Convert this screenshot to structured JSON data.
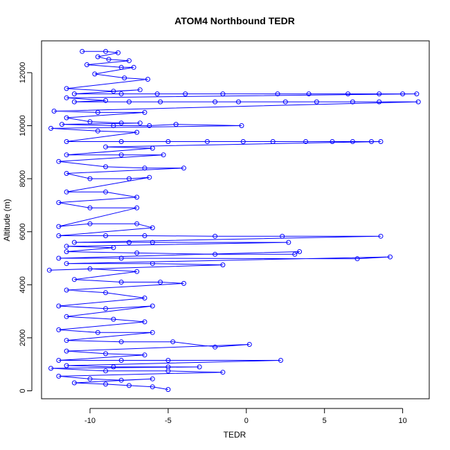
{
  "chart_data": {
    "type": "scatter",
    "title": "ATOM4 Northbound TEDR",
    "xlabel": "TEDR",
    "ylabel": "Altitude (m)",
    "xlim": [
      -13.1,
      11.7
    ],
    "ylim": [
      -300,
      13200
    ],
    "x_ticks": [
      -10,
      -5,
      0,
      5,
      10
    ],
    "x_tick_labels": [
      "-10",
      "-5",
      "0",
      "5",
      "10"
    ],
    "y_ticks": [
      0,
      2000,
      4000,
      6000,
      8000,
      10000,
      12000
    ],
    "y_tick_labels": [
      "0",
      "2000",
      "4000",
      "6000",
      "8000",
      "10000",
      "12000"
    ],
    "grid": false,
    "legend": "none",
    "point_style": "open-circle",
    "line_connecting_points": true,
    "series_color": "#0000ff",
    "points": [
      [
        -10.5,
        12800
      ],
      [
        -9.0,
        12800
      ],
      [
        -8.2,
        12750
      ],
      [
        -9.5,
        12600
      ],
      [
        -8.8,
        12500
      ],
      [
        -7.5,
        12450
      ],
      [
        -10.2,
        12300
      ],
      [
        -8.0,
        12200
      ],
      [
        -7.2,
        12200
      ],
      [
        -9.7,
        11950
      ],
      [
        -7.8,
        11800
      ],
      [
        -6.3,
        11750
      ],
      [
        -11.5,
        11400
      ],
      [
        -8.5,
        11300
      ],
      [
        -6.8,
        11350
      ],
      [
        -11.0,
        11200
      ],
      [
        -8.0,
        11200
      ],
      [
        -5.7,
        11200
      ],
      [
        -3.9,
        11200
      ],
      [
        -1.5,
        11200
      ],
      [
        2.0,
        11200
      ],
      [
        4.0,
        11200
      ],
      [
        6.5,
        11200
      ],
      [
        8.5,
        11200
      ],
      [
        10.0,
        11200
      ],
      [
        10.9,
        11200
      ],
      [
        -11.5,
        11050
      ],
      [
        -9.0,
        10950
      ],
      [
        -11.0,
        10900
      ],
      [
        -7.5,
        10900
      ],
      [
        -5.5,
        10900
      ],
      [
        -2.0,
        10900
      ],
      [
        -0.5,
        10900
      ],
      [
        2.5,
        10900
      ],
      [
        4.5,
        10900
      ],
      [
        6.8,
        10900
      ],
      [
        8.5,
        10900
      ],
      [
        11.0,
        10900
      ],
      [
        -12.3,
        10550
      ],
      [
        -9.5,
        10500
      ],
      [
        -6.5,
        10500
      ],
      [
        -11.5,
        10300
      ],
      [
        -10.0,
        10150
      ],
      [
        -8.0,
        10100
      ],
      [
        -6.8,
        10100
      ],
      [
        -11.8,
        10050
      ],
      [
        -8.5,
        10000
      ],
      [
        -6.2,
        10000
      ],
      [
        -4.5,
        10050
      ],
      [
        -0.3,
        10000
      ],
      [
        -12.5,
        9900
      ],
      [
        -9.5,
        9800
      ],
      [
        -7.0,
        9750
      ],
      [
        -11.5,
        9400
      ],
      [
        -8.0,
        9400
      ],
      [
        -5.0,
        9400
      ],
      [
        -2.5,
        9400
      ],
      [
        -0.2,
        9400
      ],
      [
        1.7,
        9400
      ],
      [
        3.8,
        9400
      ],
      [
        5.5,
        9400
      ],
      [
        6.8,
        9400
      ],
      [
        8.0,
        9400
      ],
      [
        8.6,
        9400
      ],
      [
        -9.0,
        9200
      ],
      [
        -6.0,
        9150
      ],
      [
        -11.5,
        8900
      ],
      [
        -8.0,
        8900
      ],
      [
        -5.3,
        8900
      ],
      [
        -12.0,
        8650
      ],
      [
        -9.0,
        8450
      ],
      [
        -6.5,
        8400
      ],
      [
        -4.0,
        8400
      ],
      [
        -11.5,
        8200
      ],
      [
        -10.0,
        8000
      ],
      [
        -7.5,
        8000
      ],
      [
        -6.2,
        8050
      ],
      [
        -11.5,
        7500
      ],
      [
        -9.0,
        7500
      ],
      [
        -7.0,
        7300
      ],
      [
        -12.0,
        7100
      ],
      [
        -10.0,
        6900
      ],
      [
        -7.0,
        6900
      ],
      [
        -12.0,
        6200
      ],
      [
        -10.0,
        6300
      ],
      [
        -7.0,
        6300
      ],
      [
        -6.0,
        6150
      ],
      [
        -12.0,
        5850
      ],
      [
        -9.0,
        5850
      ],
      [
        -6.5,
        5850
      ],
      [
        -2.0,
        5830
      ],
      [
        2.3,
        5830
      ],
      [
        8.6,
        5830
      ],
      [
        -11.0,
        5600
      ],
      [
        -7.5,
        5600
      ],
      [
        -6.0,
        5600
      ],
      [
        2.7,
        5600
      ],
      [
        -11.5,
        5450
      ],
      [
        -8.5,
        5400
      ],
      [
        -11.5,
        5250
      ],
      [
        -7.0,
        5200
      ],
      [
        -2.0,
        5150
      ],
      [
        3.1,
        5150
      ],
      [
        3.4,
        5250
      ],
      [
        -12.0,
        5000
      ],
      [
        -8.0,
        5000
      ],
      [
        7.1,
        4980
      ],
      [
        9.2,
        5050
      ],
      [
        -11.5,
        4800
      ],
      [
        -6.0,
        4800
      ],
      [
        -1.5,
        4750
      ],
      [
        -12.6,
        4550
      ],
      [
        -10.0,
        4600
      ],
      [
        -7.0,
        4500
      ],
      [
        -11.0,
        4200
      ],
      [
        -8.0,
        4100
      ],
      [
        -5.5,
        4100
      ],
      [
        -4.0,
        4050
      ],
      [
        -11.5,
        3800
      ],
      [
        -9.0,
        3700
      ],
      [
        -6.5,
        3500
      ],
      [
        -12.0,
        3200
      ],
      [
        -9.0,
        3100
      ],
      [
        -6.0,
        3200
      ],
      [
        -11.5,
        2800
      ],
      [
        -8.5,
        2700
      ],
      [
        -6.5,
        2600
      ],
      [
        -12.0,
        2300
      ],
      [
        -9.5,
        2200
      ],
      [
        -6.0,
        2200
      ],
      [
        -11.5,
        1900
      ],
      [
        -8.0,
        1850
      ],
      [
        -4.7,
        1850
      ],
      [
        -2.0,
        1650
      ],
      [
        0.2,
        1750
      ],
      [
        -11.5,
        1500
      ],
      [
        -9.0,
        1400
      ],
      [
        -6.5,
        1350
      ],
      [
        -12.0,
        1150
      ],
      [
        -8.0,
        1150
      ],
      [
        -5.0,
        1150
      ],
      [
        2.2,
        1150
      ],
      [
        -11.5,
        950
      ],
      [
        -8.5,
        900
      ],
      [
        -5.0,
        900
      ],
      [
        -3.0,
        900
      ],
      [
        -12.5,
        850
      ],
      [
        -9.0,
        750
      ],
      [
        -5.0,
        750
      ],
      [
        -1.5,
        700
      ],
      [
        -12.0,
        550
      ],
      [
        -10.0,
        450
      ],
      [
        -8.0,
        400
      ],
      [
        -6.0,
        450
      ],
      [
        -11.0,
        300
      ],
      [
        -9.0,
        250
      ],
      [
        -7.5,
        200
      ],
      [
        -6.0,
        150
      ],
      [
        -5.0,
        50
      ]
    ]
  }
}
